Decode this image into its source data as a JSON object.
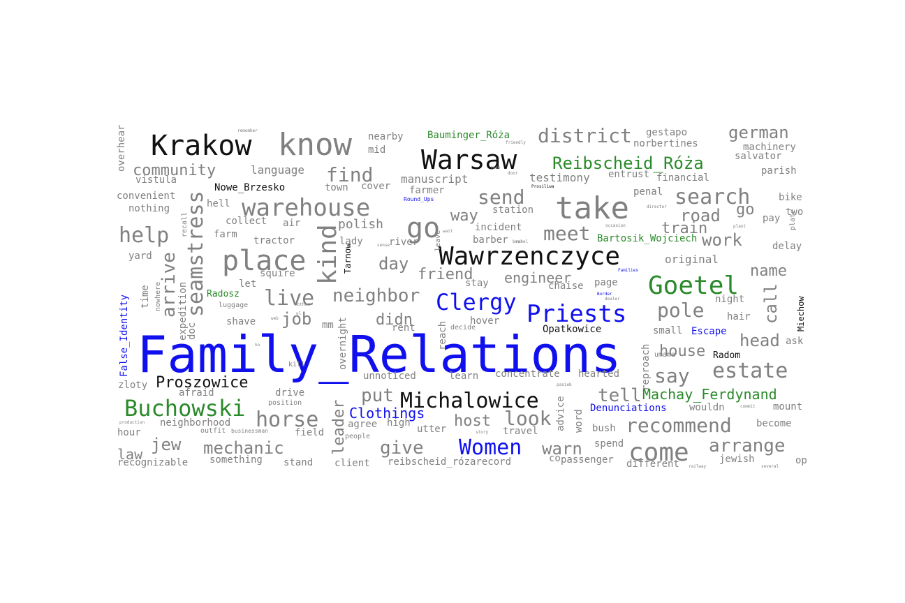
{
  "colors": {
    "gray": "#808080",
    "black": "#111111",
    "green": "#2a8a2a",
    "blue": "#1010ee"
  },
  "words": [
    {
      "text": "Family_Relations",
      "color": "blue"
    },
    {
      "text": "Krakow",
      "color": "black"
    },
    {
      "text": "know",
      "color": "gray"
    },
    {
      "text": "Warsaw",
      "color": "black"
    },
    {
      "text": "Wawrzenczyce",
      "color": "black"
    },
    {
      "text": "take",
      "color": "gray"
    },
    {
      "text": "place",
      "color": "gray"
    },
    {
      "text": "warehouse",
      "color": "gray"
    },
    {
      "text": "Goetel",
      "color": "green"
    },
    {
      "text": "Priests",
      "color": "blue"
    },
    {
      "text": "Michalowice",
      "color": "black"
    },
    {
      "text": "Buchowski",
      "color": "green"
    },
    {
      "text": "Women",
      "color": "blue"
    },
    {
      "text": "Clergy",
      "color": "blue"
    },
    {
      "text": "come",
      "color": "gray"
    },
    {
      "text": "go",
      "color": "gray"
    },
    {
      "text": "kind",
      "color": "gray"
    },
    {
      "text": "seamstress",
      "color": "gray"
    },
    {
      "text": "search",
      "color": "gray"
    },
    {
      "text": "recommend",
      "color": "gray"
    },
    {
      "text": "estate",
      "color": "gray"
    },
    {
      "text": "district",
      "color": "gray"
    },
    {
      "text": "find",
      "color": "gray"
    },
    {
      "text": "help",
      "color": "gray"
    },
    {
      "text": "horse",
      "color": "gray"
    },
    {
      "text": "live",
      "color": "gray"
    },
    {
      "text": "neighbor",
      "color": "gray"
    },
    {
      "text": "pole",
      "color": "gray"
    },
    {
      "text": "send",
      "color": "gray"
    },
    {
      "text": "meet",
      "color": "gray"
    },
    {
      "text": "say",
      "color": "gray"
    },
    {
      "text": "german",
      "color": "gray"
    },
    {
      "text": "Reibscheid_Róża",
      "color": "green"
    },
    {
      "text": "Machay_Ferdynand",
      "color": "green"
    },
    {
      "text": "Proszowice",
      "color": "black"
    },
    {
      "text": "community",
      "color": "gray"
    },
    {
      "text": "arrange",
      "color": "gray"
    },
    {
      "text": "look",
      "color": "gray"
    },
    {
      "text": "mechanic",
      "color": "gray"
    },
    {
      "text": "give",
      "color": "gray"
    },
    {
      "text": "put",
      "color": "gray"
    },
    {
      "text": "tell",
      "color": "gray"
    },
    {
      "text": "arrive",
      "color": "gray"
    },
    {
      "text": "Clothings",
      "color": "blue"
    },
    {
      "text": "jew",
      "color": "gray"
    },
    {
      "text": "day",
      "color": "gray"
    },
    {
      "text": "job",
      "color": "gray"
    },
    {
      "text": "warn",
      "color": "gray"
    },
    {
      "text": "head",
      "color": "gray"
    },
    {
      "text": "road",
      "color": "gray"
    },
    {
      "text": "call",
      "color": "gray"
    },
    {
      "text": "name",
      "color": "gray"
    },
    {
      "text": "work",
      "color": "gray"
    },
    {
      "text": "leader",
      "color": "gray"
    },
    {
      "text": "house",
      "color": "gray"
    },
    {
      "text": "host",
      "color": "gray"
    },
    {
      "text": "friend",
      "color": "gray"
    },
    {
      "text": "engineer",
      "color": "gray"
    },
    {
      "text": "train",
      "color": "gray"
    },
    {
      "text": "law",
      "color": "gray"
    },
    {
      "text": "didn",
      "color": "gray"
    },
    {
      "text": "go",
      "color": "gray"
    },
    {
      "text": "way",
      "color": "gray"
    },
    {
      "text": "polish",
      "color": "gray"
    },
    {
      "text": "manuscript",
      "color": "gray"
    },
    {
      "text": "testimony",
      "color": "gray"
    },
    {
      "text": "original",
      "color": "gray"
    },
    {
      "text": "language",
      "color": "gray"
    },
    {
      "text": "Bauminger_Róża",
      "color": "green"
    },
    {
      "text": "Bartosik_Wojciech",
      "color": "green"
    },
    {
      "text": "gestapo",
      "color": "gray"
    },
    {
      "text": "Nowe_Brzesko",
      "color": "black"
    },
    {
      "text": "Opatkowice",
      "color": "black"
    },
    {
      "text": "Tarnow",
      "color": "black"
    },
    {
      "text": "Miechow",
      "color": "black"
    },
    {
      "text": "Radom",
      "color": "black"
    },
    {
      "text": "Radosz",
      "color": "green"
    },
    {
      "text": "Escape",
      "color": "blue"
    },
    {
      "text": "Denunciations",
      "color": "blue"
    },
    {
      "text": "False_Identity",
      "color": "blue"
    },
    {
      "text": "Round_Ups",
      "color": "blue"
    },
    {
      "text": "Families",
      "color": "blue"
    },
    {
      "text": "Border",
      "color": "blue"
    },
    {
      "text": "Prosiliwa",
      "color": "black"
    },
    {
      "text": "nearby",
      "color": "gray"
    },
    {
      "text": "mid",
      "color": "gray"
    },
    {
      "text": "overhear",
      "color": "gray"
    },
    {
      "text": "vistula",
      "color": "gray"
    },
    {
      "text": "convenient",
      "color": "gray"
    },
    {
      "text": "nothing",
      "color": "gray"
    },
    {
      "text": "hell",
      "color": "gray"
    },
    {
      "text": "collect",
      "color": "gray"
    },
    {
      "text": "air",
      "color": "gray"
    },
    {
      "text": "farm",
      "color": "gray"
    },
    {
      "text": "tractor",
      "color": "gray"
    },
    {
      "text": "yard",
      "color": "gray"
    },
    {
      "text": "squire",
      "color": "gray"
    },
    {
      "text": "let",
      "color": "gray"
    },
    {
      "text": "time",
      "color": "gray"
    },
    {
      "text": "expedition",
      "color": "gray"
    },
    {
      "text": "doc",
      "color": "gray"
    },
    {
      "text": "shave",
      "color": "gray"
    },
    {
      "text": "luggage",
      "color": "gray"
    },
    {
      "text": "zloty",
      "color": "gray"
    },
    {
      "text": "afraid",
      "color": "gray"
    },
    {
      "text": "drive",
      "color": "gray"
    },
    {
      "text": "position",
      "color": "gray"
    },
    {
      "text": "neighborhood",
      "color": "gray"
    },
    {
      "text": "hour",
      "color": "gray"
    },
    {
      "text": "outfit",
      "color": "gray"
    },
    {
      "text": "businessman",
      "color": "gray"
    },
    {
      "text": "field",
      "color": "gray"
    },
    {
      "text": "something",
      "color": "gray"
    },
    {
      "text": "recognizable",
      "color": "gray"
    },
    {
      "text": "stand",
      "color": "gray"
    },
    {
      "text": "client",
      "color": "gray"
    },
    {
      "text": "reibscheid_rózarecord",
      "color": "gray"
    },
    {
      "text": "passenger",
      "color": "gray"
    },
    {
      "text": "different",
      "color": "gray"
    },
    {
      "text": "jewish",
      "color": "gray"
    },
    {
      "text": "op",
      "color": "gray"
    },
    {
      "text": "become",
      "color": "gray"
    },
    {
      "text": "mount",
      "color": "gray"
    },
    {
      "text": "wouldn",
      "color": "gray"
    },
    {
      "text": "bush",
      "color": "gray"
    },
    {
      "text": "spend",
      "color": "gray"
    },
    {
      "text": "advice",
      "color": "gray"
    },
    {
      "text": "word",
      "color": "gray"
    },
    {
      "text": "travel",
      "color": "gray"
    },
    {
      "text": "utter",
      "color": "gray"
    },
    {
      "text": "high",
      "color": "gray"
    },
    {
      "text": "agree",
      "color": "gray"
    },
    {
      "text": "people",
      "color": "gray"
    },
    {
      "text": "unnoticed",
      "color": "gray"
    },
    {
      "text": "learn",
      "color": "gray"
    },
    {
      "text": "concentrate",
      "color": "gray"
    },
    {
      "text": "hearted",
      "color": "gray"
    },
    {
      "text": "overnight",
      "color": "gray"
    },
    {
      "text": "mm",
      "color": "gray"
    },
    {
      "text": "rent",
      "color": "gray"
    },
    {
      "text": "decide",
      "color": "gray"
    },
    {
      "text": "reach",
      "color": "gray"
    },
    {
      "text": "hover",
      "color": "gray"
    },
    {
      "text": "stay",
      "color": "gray"
    },
    {
      "text": "chaise",
      "color": "gray"
    },
    {
      "text": "page",
      "color": "gray"
    },
    {
      "text": "small",
      "color": "gray"
    },
    {
      "text": "reproach",
      "color": "gray"
    },
    {
      "text": "ask",
      "color": "gray"
    },
    {
      "text": "hair",
      "color": "gray"
    },
    {
      "text": "night",
      "color": "gray"
    },
    {
      "text": "delay",
      "color": "gray"
    },
    {
      "text": "pay",
      "color": "gray"
    },
    {
      "text": "two",
      "color": "gray"
    },
    {
      "text": "bike",
      "color": "gray"
    },
    {
      "text": "parish",
      "color": "gray"
    },
    {
      "text": "salvator",
      "color": "gray"
    },
    {
      "text": "machinery",
      "color": "gray"
    },
    {
      "text": "norbertines",
      "color": "gray"
    },
    {
      "text": "entrust",
      "color": "gray"
    },
    {
      "text": "financial",
      "color": "gray"
    },
    {
      "text": "penal",
      "color": "gray"
    },
    {
      "text": "station",
      "color": "gray"
    },
    {
      "text": "incident",
      "color": "gray"
    },
    {
      "text": "barber",
      "color": "gray"
    },
    {
      "text": "farmer",
      "color": "gray"
    },
    {
      "text": "town",
      "color": "gray"
    },
    {
      "text": "cover",
      "color": "gray"
    },
    {
      "text": "lady",
      "color": "gray"
    },
    {
      "text": "river",
      "color": "gray"
    },
    {
      "text": "recall",
      "color": "gray"
    },
    {
      "text": "leave",
      "color": "gray"
    },
    {
      "text": "director",
      "color": "gray"
    },
    {
      "text": "plant",
      "color": "gray"
    },
    {
      "text": "remember",
      "color": "gray"
    },
    {
      "text": "friendly",
      "color": "gray"
    },
    {
      "text": "nowhere",
      "color": "gray"
    },
    {
      "text": "railway",
      "color": "gray"
    },
    {
      "text": "several",
      "color": "gray"
    },
    {
      "text": "commit",
      "color": "gray"
    },
    {
      "text": "production",
      "color": "gray"
    },
    {
      "text": "story",
      "color": "gray"
    },
    {
      "text": "co",
      "color": "gray"
    },
    {
      "text": "umama",
      "color": "gray"
    },
    {
      "text": "plate",
      "color": "gray"
    },
    {
      "text": "kill",
      "color": "gray"
    },
    {
      "text": "web",
      "color": "gray"
    },
    {
      "text": "mother",
      "color": "gray"
    },
    {
      "text": "pasieb",
      "color": "gray"
    },
    {
      "text": "dealer",
      "color": "gray"
    },
    {
      "text": "sense",
      "color": "gray"
    },
    {
      "text": "ko",
      "color": "gray"
    },
    {
      "text": "ol",
      "color": "gray"
    },
    {
      "text": "rude",
      "color": "gray"
    },
    {
      "text": "door",
      "color": "gray"
    },
    {
      "text": "rebel",
      "color": "gray"
    },
    {
      "text": "wait",
      "color": "gray"
    },
    {
      "text": "bear",
      "color": "gray"
    },
    {
      "text": "occasion",
      "color": "gray"
    },
    {
      "text": "sekretariat",
      "color": "gray"
    }
  ]
}
